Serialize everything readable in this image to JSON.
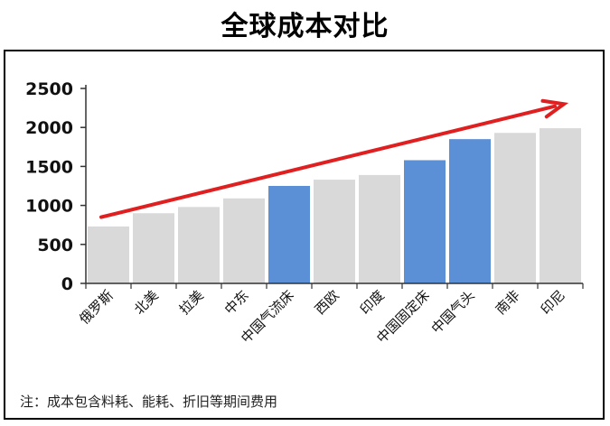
{
  "title": "全球成本对比",
  "note": "注：成本包含料耗、能耗、折旧等期间费用",
  "colors": {
    "bar_default": "#d9d9d9",
    "bar_highlight": "#5b8fd6",
    "arrow": "#e02020",
    "axis": "#333333"
  },
  "chart_data": {
    "type": "bar",
    "title": "全球成本对比",
    "xlabel": "",
    "ylabel": "",
    "ylim": [
      0,
      2500
    ],
    "yticks": [
      0,
      500,
      1000,
      1500,
      2000,
      2500
    ],
    "grid": false,
    "categories": [
      "俄罗斯",
      "北美",
      "拉美",
      "中东",
      "中国气流床",
      "西欧",
      "印度",
      "中国固定床",
      "中国气头",
      "南非",
      "印尼"
    ],
    "values": [
      730,
      900,
      980,
      1090,
      1250,
      1330,
      1390,
      1580,
      1850,
      1930,
      1990
    ],
    "highlighted": [
      "中国气流床",
      "中国固定床",
      "中国气头"
    ],
    "annotations": [
      {
        "type": "trend-arrow",
        "from_category": "俄罗斯",
        "from_value": 850,
        "to_category": "印尼",
        "to_value": 2300
      }
    ]
  }
}
